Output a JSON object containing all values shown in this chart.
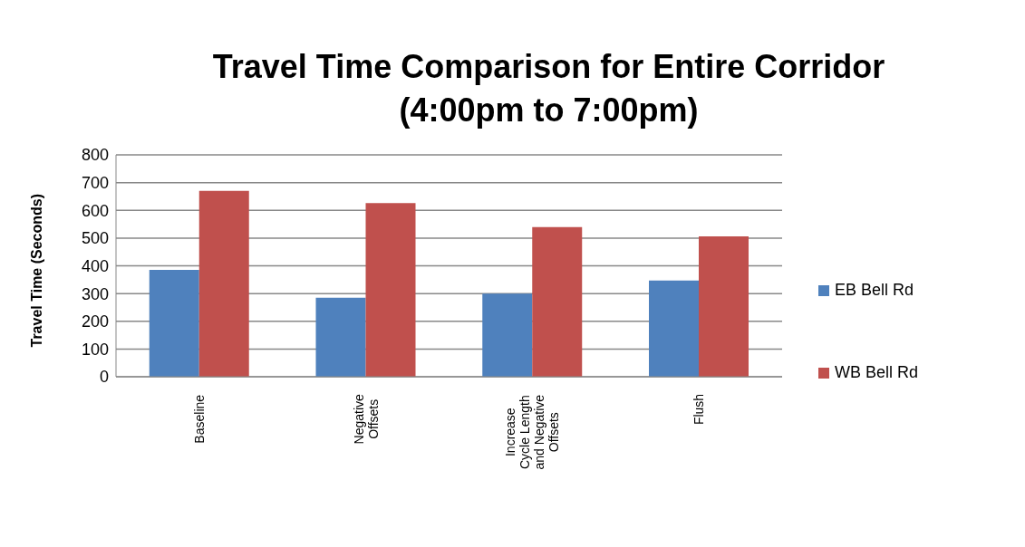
{
  "chart_data": {
    "type": "bar",
    "title": "Travel Time Comparison for Entire Corridor",
    "subtitle": "(4:00pm to 7:00pm)",
    "ylabel": "Travel Time (Seconds)",
    "categories": [
      "Baseline",
      "Negative Offsets",
      "Increase Cycle Length and Negative Offsets",
      "Flush"
    ],
    "series": [
      {
        "name": "EB Bell Rd",
        "color": "#4f81bd",
        "values": [
          385,
          285,
          300,
          347
        ]
      },
      {
        "name": "WB Bell Rd",
        "color": "#c0504d",
        "values": [
          670,
          626,
          540,
          506
        ]
      }
    ],
    "ylim": [
      0,
      800
    ],
    "yticks": [
      0,
      100,
      200,
      300,
      400,
      500,
      600,
      700,
      800
    ],
    "grid": "y",
    "legend": "right"
  }
}
